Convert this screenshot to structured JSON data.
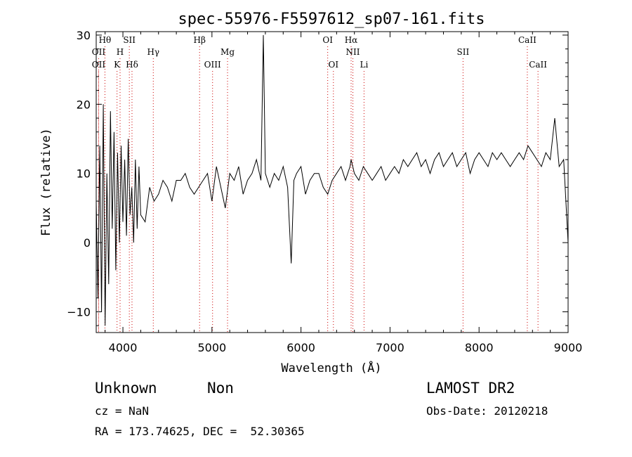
{
  "chart_data": {
    "type": "line",
    "title": "spec-55976-F5597612_sp07-161.fits",
    "xlabel": "Wavelength (Å)",
    "ylabel": "Flux (relative)",
    "xlim": [
      3700,
      9000
    ],
    "ylim": [
      -13,
      30.5
    ],
    "xticks": [
      4000,
      5000,
      6000,
      7000,
      8000,
      9000
    ],
    "yticks": [
      -10,
      0,
      10,
      20,
      30
    ],
    "line_color": "#000000",
    "marker_color": "#cc0000",
    "series": [
      {
        "x": [
          3700,
          3720,
          3740,
          3760,
          3780,
          3800,
          3820,
          3840,
          3860,
          3880,
          3900,
          3920,
          3940,
          3960,
          3980,
          4000,
          4020,
          4040,
          4060,
          4080,
          4100,
          4120,
          4140,
          4160,
          4180,
          4200,
          4250,
          4300,
          4350,
          4400,
          4450,
          4500,
          4550,
          4600,
          4650,
          4700,
          4750,
          4800,
          4850,
          4900,
          4950,
          5000,
          5050,
          5100,
          5150,
          5200,
          5250,
          5300,
          5350,
          5400,
          5450,
          5500,
          5550,
          5577,
          5600,
          5650,
          5700,
          5750,
          5800,
          5850,
          5890,
          5920,
          5950,
          6000,
          6050,
          6100,
          6150,
          6200,
          6250,
          6300,
          6350,
          6400,
          6450,
          6500,
          6550,
          6563,
          6600,
          6650,
          6700,
          6750,
          6800,
          6850,
          6900,
          6950,
          7000,
          7050,
          7100,
          7150,
          7200,
          7250,
          7300,
          7350,
          7400,
          7450,
          7500,
          7550,
          7600,
          7650,
          7700,
          7750,
          7800,
          7850,
          7900,
          7950,
          8000,
          8050,
          8100,
          8150,
          8200,
          8250,
          8300,
          8350,
          8400,
          8450,
          8500,
          8550,
          8600,
          8650,
          8700,
          8750,
          8800,
          8850,
          8900,
          8950,
          9000
        ],
        "y": [
          6,
          -8,
          14,
          -10,
          20,
          -12,
          10,
          -6,
          19,
          2,
          16,
          -4,
          13,
          0,
          14,
          3,
          12,
          1,
          15,
          4,
          8,
          0,
          12,
          2,
          11,
          4,
          3,
          8,
          6,
          7,
          9,
          8,
          6,
          9,
          9,
          10,
          8,
          7,
          8,
          9,
          10,
          6,
          11,
          8,
          5,
          10,
          9,
          11,
          7,
          9,
          10,
          12,
          9,
          30,
          10,
          8,
          10,
          9,
          11,
          8,
          -3,
          9,
          10,
          11,
          7,
          9,
          10,
          10,
          8,
          7,
          9,
          10,
          11,
          9,
          11,
          12,
          10,
          9,
          11,
          10,
          9,
          10,
          11,
          9,
          10,
          11,
          10,
          12,
          11,
          12,
          13,
          11,
          12,
          10,
          12,
          13,
          11,
          12,
          13,
          11,
          12,
          13,
          10,
          12,
          13,
          12,
          11,
          13,
          12,
          13,
          12,
          11,
          12,
          13,
          12,
          14,
          13,
          12,
          11,
          13,
          12,
          18,
          11,
          12,
          0
        ]
      }
    ],
    "lines": [
      {
        "label": "Hθ",
        "wl": 3798,
        "row": 0
      },
      {
        "label": "OII",
        "wl": 3727,
        "row": 1
      },
      {
        "label": "OII",
        "wl": 3727,
        "row": 2
      },
      {
        "label": "H",
        "wl": 3968,
        "row": 1
      },
      {
        "label": "K",
        "wl": 3934,
        "row": 2
      },
      {
        "label": "SII",
        "wl": 4072,
        "row": 0
      },
      {
        "label": "Hδ",
        "wl": 4102,
        "row": 2
      },
      {
        "label": "Hγ",
        "wl": 4341,
        "row": 1
      },
      {
        "label": "Hβ",
        "wl": 4861,
        "row": 0
      },
      {
        "label": "OIII",
        "wl": 5007,
        "row": 2
      },
      {
        "label": "Mg",
        "wl": 5175,
        "row": 1
      },
      {
        "label": "OI",
        "wl": 6300,
        "row": 0
      },
      {
        "label": "OI",
        "wl": 6364,
        "row": 2
      },
      {
        "label": "Hα",
        "wl": 6563,
        "row": 0
      },
      {
        "label": "NII",
        "wl": 6583,
        "row": 1
      },
      {
        "label": "Li",
        "wl": 6708,
        "row": 2
      },
      {
        "label": "SII",
        "wl": 7820,
        "row": 1
      },
      {
        "label": "CaII",
        "wl": 8542,
        "row": 0
      },
      {
        "label": "CaII",
        "wl": 8662,
        "row": 2
      }
    ]
  },
  "info": {
    "class_label": "Unknown",
    "subclass_label": "Non",
    "cz": "cz = NaN",
    "radec": "RA = 173.74625, DEC =  52.30365",
    "survey": "LAMOST DR2",
    "obs_date": "Obs-Date: 20120218"
  }
}
